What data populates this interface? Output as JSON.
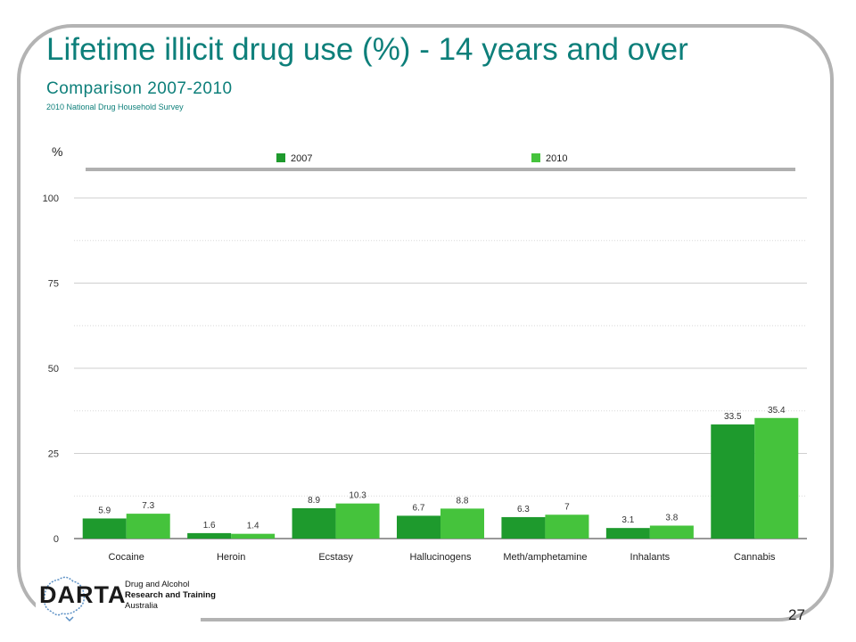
{
  "slide": {
    "title": "Lifetime illicit drug use (%) - 14 years and over",
    "subtitle": "Comparison 2007-2010",
    "source": "2010 National Drug Household Survey",
    "page_number": "27"
  },
  "logo": {
    "name": "DARTA",
    "line1": "Drug and Alcohol",
    "line2": "Research and Training",
    "line3": "Australia"
  },
  "colors": {
    "series_2007": "#1e9a2d",
    "series_2010": "#45c33c",
    "title": "#0d7f7a"
  },
  "chart_data": {
    "type": "bar",
    "title": "Lifetime illicit drug use (%) - 14 years and over",
    "subtitle": "Comparison 2007-2010",
    "ylabel": "%",
    "xlabel": "",
    "ylim": [
      0,
      100
    ],
    "yticks": [
      0,
      25,
      50,
      75,
      100
    ],
    "grid": true,
    "legend_position": "top",
    "categories": [
      "Cocaine",
      "Heroin",
      "Ecstasy",
      "Hallucinogens",
      "Meth/amphetamine",
      "Inhalants",
      "Cannabis"
    ],
    "series": [
      {
        "name": "2007",
        "values": [
          5.9,
          1.6,
          8.9,
          6.7,
          6.3,
          3.1,
          33.5
        ],
        "labels": [
          "5.9",
          "1.6",
          "8.9",
          "6.7",
          "6.3",
          "3.1",
          "33.5"
        ]
      },
      {
        "name": "2010",
        "values": [
          7.3,
          1.4,
          10.3,
          8.8,
          7,
          3.8,
          35.4
        ],
        "labels": [
          "7.3",
          "1.4",
          "10.3",
          "8.8",
          "7",
          "3.8",
          "35.4"
        ]
      }
    ]
  }
}
